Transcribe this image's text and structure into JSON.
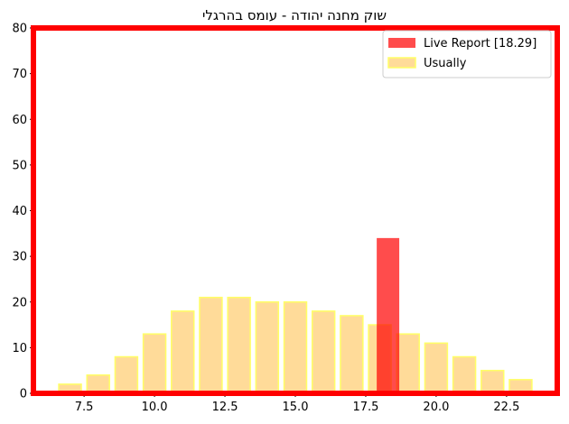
{
  "chart_data": {
    "type": "bar",
    "title": "שוק מחנה יהודה - עומס בהרגלי",
    "xlabel": "",
    "ylabel": "",
    "xlim": [
      5.7,
      24.3
    ],
    "ylim": [
      0,
      80
    ],
    "x_ticks": [
      7.5,
      10.0,
      12.5,
      15.0,
      17.5,
      20.0,
      22.5
    ],
    "x_tick_labels": [
      "7.5",
      "10.0",
      "12.5",
      "15.0",
      "17.5",
      "20.0",
      "22.5"
    ],
    "y_ticks": [
      0,
      10,
      20,
      30,
      40,
      50,
      60,
      70,
      80
    ],
    "y_tick_labels": [
      "0",
      "10",
      "20",
      "30",
      "40",
      "50",
      "60",
      "70",
      "80"
    ],
    "bar_width": 0.8,
    "grid": false,
    "legend_position": "top-right",
    "series": [
      {
        "name": "Live Report [18.29]",
        "color": "#ff0000",
        "opacity": 0.7,
        "x": [
          18.29
        ],
        "values": [
          34
        ]
      },
      {
        "name": "Usually",
        "color": "#ffa500",
        "edge_color": "#ffff66",
        "opacity": 0.4,
        "x": [
          7,
          8,
          9,
          10,
          11,
          12,
          13,
          14,
          15,
          16,
          17,
          18,
          19,
          20,
          21,
          22,
          23
        ],
        "values": [
          2,
          4,
          8,
          13,
          18,
          21,
          21,
          20,
          20,
          18,
          17,
          15,
          13,
          11,
          8,
          5,
          3
        ]
      }
    ],
    "frame_color": "#ff0000"
  }
}
